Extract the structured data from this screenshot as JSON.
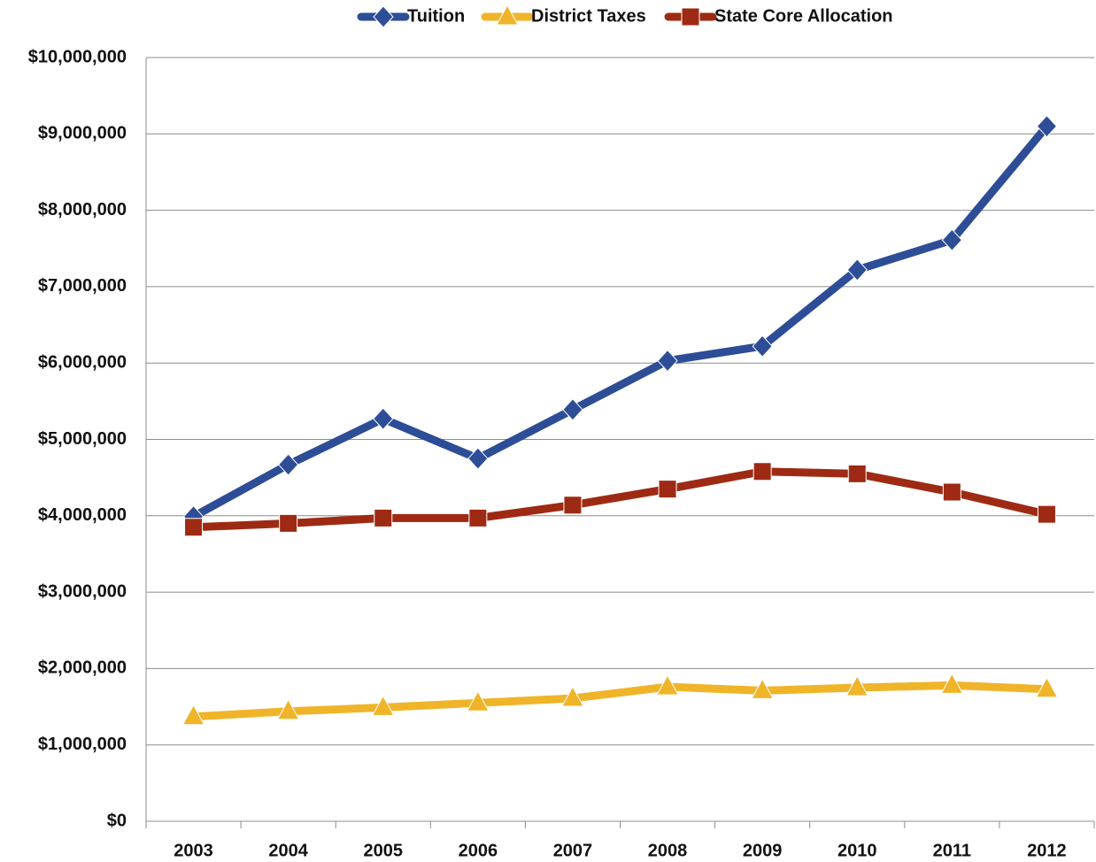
{
  "chart_data": {
    "type": "line",
    "categories": [
      "2003",
      "2004",
      "2005",
      "2006",
      "2007",
      "2008",
      "2009",
      "2010",
      "2011",
      "2012"
    ],
    "series": [
      {
        "name": "Tuition",
        "color": "#2e4d97",
        "marker": "diamond",
        "values": [
          3990000,
          4670000,
          5270000,
          4750000,
          5390000,
          6030000,
          6220000,
          7220000,
          7610000,
          9100000
        ]
      },
      {
        "name": "District Taxes",
        "color": "#f0b429",
        "marker": "triangle",
        "values": [
          1370000,
          1440000,
          1490000,
          1550000,
          1610000,
          1760000,
          1710000,
          1750000,
          1780000,
          1730000
        ]
      },
      {
        "name": "State Core Allocation",
        "color": "#9e2a14",
        "marker": "square",
        "values": [
          3850000,
          3900000,
          3970000,
          3970000,
          4140000,
          4350000,
          4580000,
          4550000,
          4310000,
          4020000
        ]
      }
    ],
    "ylim": [
      0,
      10000000
    ],
    "yticks": [
      {
        "value": 0,
        "label": "$0"
      },
      {
        "value": 1000000,
        "label": "$1,000,000"
      },
      {
        "value": 2000000,
        "label": "$2,000,000"
      },
      {
        "value": 3000000,
        "label": "$3,000,000"
      },
      {
        "value": 4000000,
        "label": "$4,000,000"
      },
      {
        "value": 5000000,
        "label": "$5,000,000"
      },
      {
        "value": 6000000,
        "label": "$6,000,000"
      },
      {
        "value": 7000000,
        "label": "$7,000,000"
      },
      {
        "value": 8000000,
        "label": "$8,000,000"
      },
      {
        "value": 9000000,
        "label": "$9,000,000"
      },
      {
        "value": 10000000,
        "label": "$10,000,000"
      }
    ],
    "grid": true,
    "legend": "top"
  }
}
